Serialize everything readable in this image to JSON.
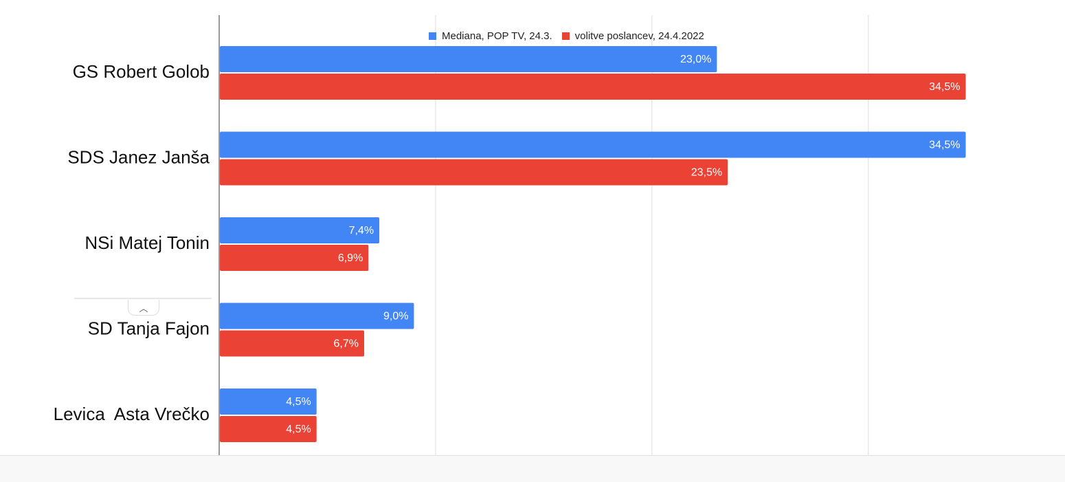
{
  "chart_data": {
    "type": "bar",
    "orientation": "horizontal",
    "categories": [
      "GS Robert Golob",
      "SDS Janez Janša",
      "NSi Matej Tonin",
      "SD Tanja Fajon",
      "Levica  Asta Vrečko"
    ],
    "series": [
      {
        "name": "Mediana, POP TV, 24.3.",
        "color": "#4285f4",
        "values": [
          23.0,
          34.5,
          7.4,
          9.0,
          4.5
        ],
        "labels": [
          "23,0%",
          "34,5%",
          "7,4%",
          "9,0%",
          "4,5%"
        ]
      },
      {
        "name": "volitve poslancev, 24.4.2022",
        "color": "#ea4335",
        "values": [
          34.5,
          23.5,
          6.9,
          6.7,
          4.5
        ],
        "labels": [
          "34,5%",
          "23,5%",
          "6,9%",
          "6,7%",
          "4,5%"
        ]
      }
    ],
    "xlim": [
      0,
      37.5
    ],
    "grid": true,
    "legend_position": "top"
  },
  "ui": {
    "collapse_icon": "chevron-up-icon",
    "collapse_glyph": "︿"
  }
}
